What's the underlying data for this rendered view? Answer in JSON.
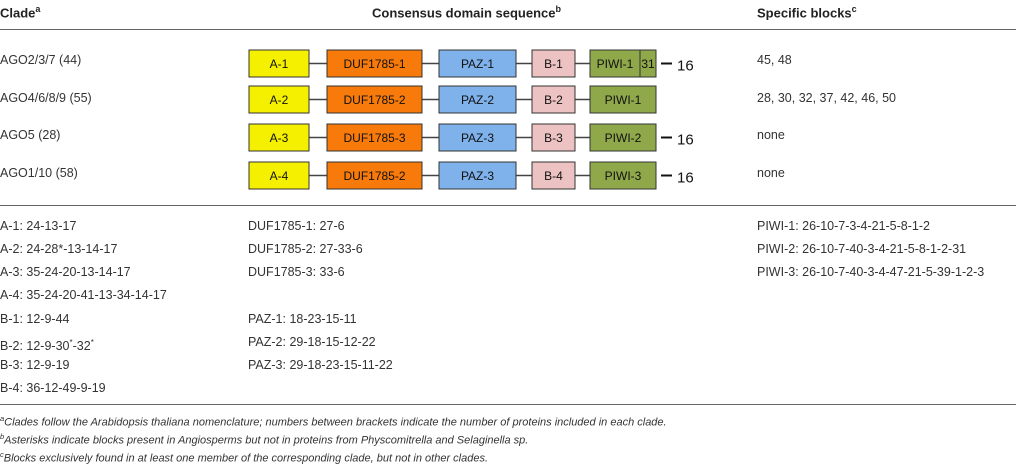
{
  "header": {
    "clade": "Clade",
    "clade_sup": "a",
    "consensus": "Consensus domain sequence",
    "consensus_sup": "b",
    "specific": "Specific blocks",
    "specific_sup": "c"
  },
  "rows": [
    {
      "clade": "AGO2/3/7 (44)",
      "specific": "45, 48",
      "boxes": {
        "a": "A-1",
        "duf": "DUF1785-1",
        "paz": "PAZ-1",
        "b": "B-1",
        "piwi": "PIWI-1",
        "piwi_extra": "31"
      },
      "tail": "16"
    },
    {
      "clade": "AGO4/6/8/9 (55)",
      "specific": "28, 30, 32, 37, 42, 46, 50",
      "boxes": {
        "a": "A-2",
        "duf": "DUF1785-2",
        "paz": "PAZ-2",
        "b": "B-2",
        "piwi": "PIWI-1",
        "piwi_extra": ""
      },
      "tail": ""
    },
    {
      "clade": "AGO5 (28)",
      "specific": "none",
      "boxes": {
        "a": "A-3",
        "duf": "DUF1785-3",
        "paz": "PAZ-3",
        "b": "B-3",
        "piwi": "PIWI-2",
        "piwi_extra": ""
      },
      "tail": "16"
    },
    {
      "clade": "AGO1/10 (58)",
      "specific": "none",
      "boxes": {
        "a": "A-4",
        "duf": "DUF1785-2",
        "paz": "PAZ-3",
        "b": "B-4",
        "piwi": "PIWI-3",
        "piwi_extra": ""
      },
      "tail": "16"
    }
  ],
  "block_col1": [
    {
      "text": "A-1: 24-13-17"
    },
    {
      "text": "A-2: 24-28*-13-14-17"
    },
    {
      "text": "A-3: 35-24-20-13-14-17"
    },
    {
      "text": "A-4: 35-24-20-41-13-34-14-17"
    },
    {
      "text": "B-1: 12-9-44"
    },
    {
      "text_a": "B-2: 12-9-30",
      "sup_a": "*",
      "text_b": "-32",
      "sup_b": "*"
    },
    {
      "text": "B-3: 12-9-19"
    },
    {
      "text": "B-4: 36-12-49-9-19"
    }
  ],
  "block_col2": [
    "DUF1785-1: 27-6",
    "DUF1785-2: 27-33-6",
    "DUF1785-3: 33-6",
    "PAZ-1: 18-23-15-11",
    "PAZ-2: 29-18-15-12-22",
    "PAZ-3: 29-18-23-15-11-22"
  ],
  "block_col3": [
    "PIWI-1: 26-10-7-3-4-21-5-8-1-2",
    "PIWI-2: 26-10-7-40-3-4-21-5-8-1-2-31",
    "PIWI-3: 26-10-7-40-3-4-47-21-5-39-1-2-3"
  ],
  "footnotes": [
    {
      "sup": "a",
      "text": "Clades follow the Arabidopsis thaliana nomenclature; numbers between brackets indicate the number of proteins included in each clade."
    },
    {
      "sup": "b",
      "text": "Asterisks indicate blocks present in Angiosperms but not in proteins from Physcomitrella and Selaginella sp."
    },
    {
      "sup": "c",
      "text": "Blocks exclusively found in at least one member of the corresponding clade, but not in other clades."
    }
  ],
  "colors": {
    "a": "#f4f000",
    "duf": "#f77a0a",
    "paz": "#7fb1ea",
    "b": "#ecc2c2",
    "piwi": "#8fa84a",
    "line": "#444444"
  }
}
